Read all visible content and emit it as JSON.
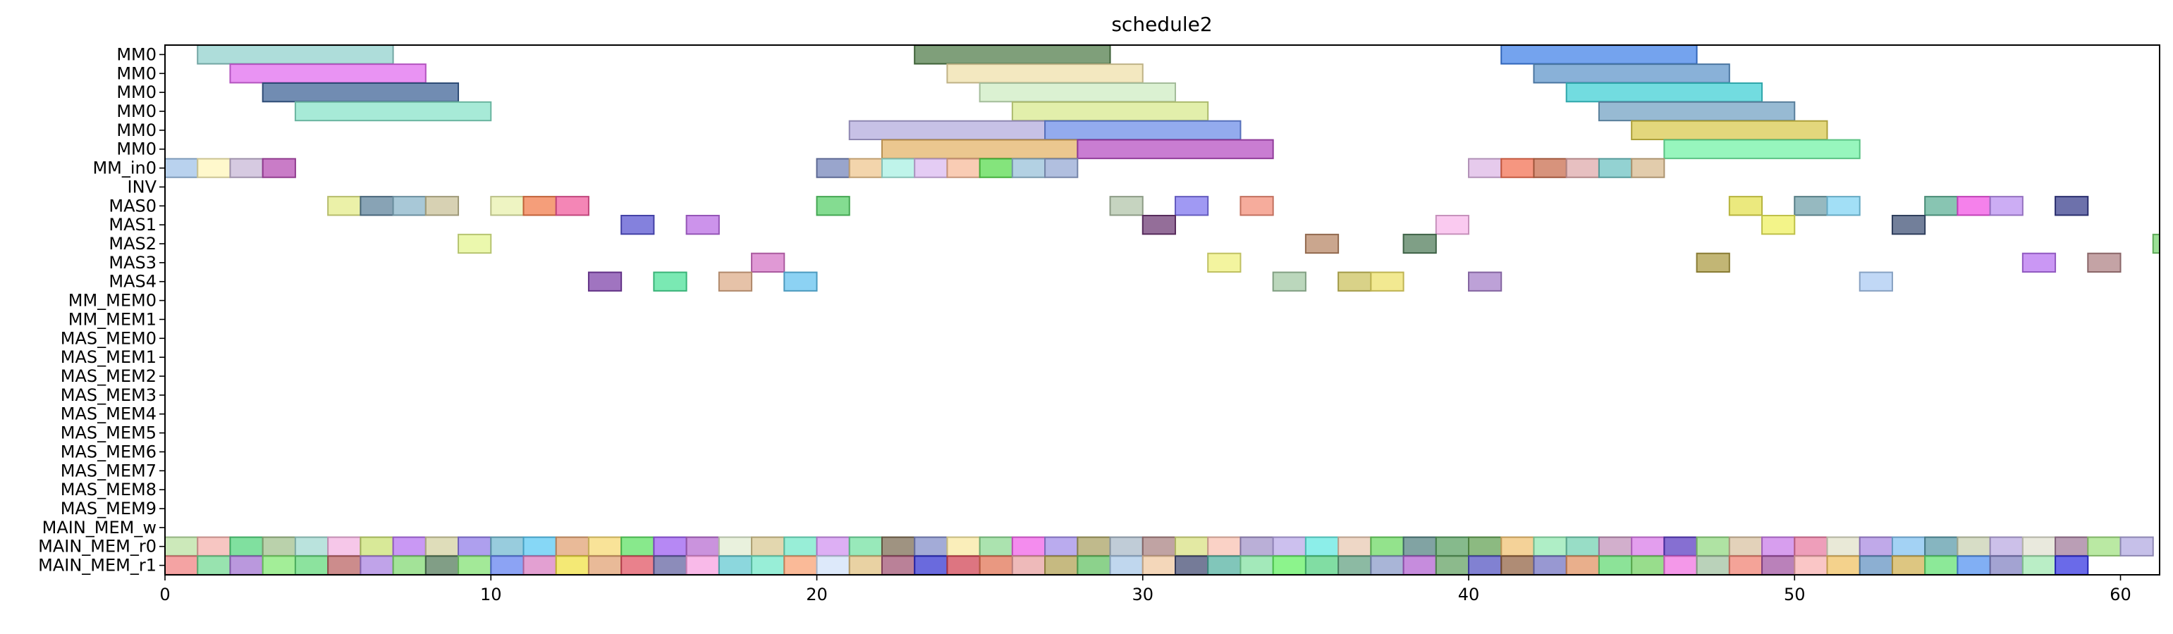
{
  "chart_data": {
    "type": "gantt",
    "title": "schedule2",
    "xlim": [
      0,
      61.2
    ],
    "xticks": [
      0,
      10,
      20,
      30,
      40,
      50,
      60
    ],
    "rows": [
      "MM0",
      "MM0",
      "MM0",
      "MM0",
      "MM0",
      "MM0",
      "MM_in0",
      "INV",
      "MAS0",
      "MAS1",
      "MAS2",
      "MAS3",
      "MAS4",
      "MM_MEM0",
      "MM_MEM1",
      "MAS_MEM0",
      "MAS_MEM1",
      "MAS_MEM2",
      "MAS_MEM3",
      "MAS_MEM4",
      "MAS_MEM5",
      "MAS_MEM6",
      "MAS_MEM7",
      "MAS_MEM8",
      "MAS_MEM9",
      "MAIN_MEM_w",
      "MAIN_MEM_r0",
      "MAIN_MEM_r1"
    ],
    "tasks": [
      {
        "row": 0,
        "start": 1,
        "end": 7,
        "color": "#8fd0cc"
      },
      {
        "row": 0,
        "start": 23,
        "end": 29,
        "color": "#4e7a46"
      },
      {
        "row": 0,
        "start": 41,
        "end": 47,
        "color": "#3f7fe8"
      },
      {
        "row": 1,
        "start": 2,
        "end": 8,
        "color": "#e069ef"
      },
      {
        "row": 1,
        "start": 24,
        "end": 30,
        "color": "#efdfa8"
      },
      {
        "row": 1,
        "start": 42,
        "end": 48,
        "color": "#5c93c9"
      },
      {
        "row": 2,
        "start": 3,
        "end": 9,
        "color": "#3a5f94"
      },
      {
        "row": 2,
        "start": 25,
        "end": 31,
        "color": "#cdebc0"
      },
      {
        "row": 2,
        "start": 43,
        "end": 49,
        "color": "#3bcfd4"
      },
      {
        "row": 3,
        "start": 4,
        "end": 10,
        "color": "#85e2c8"
      },
      {
        "row": 3,
        "start": 26,
        "end": 32,
        "color": "#d7e98a"
      },
      {
        "row": 3,
        "start": 44,
        "end": 50,
        "color": "#6f9fc2"
      },
      {
        "row": 4,
        "start": 21,
        "end": 27,
        "color": "#b1a9dd"
      },
      {
        "row": 4,
        "start": 27,
        "end": 33,
        "color": "#6a8be8"
      },
      {
        "row": 4,
        "start": 45,
        "end": 51,
        "color": "#d8c84a"
      },
      {
        "row": 5,
        "start": 22,
        "end": 28,
        "color": "#e3b164"
      },
      {
        "row": 5,
        "start": 28,
        "end": 34,
        "color": "#b44bc0"
      },
      {
        "row": 5,
        "start": 46,
        "end": 52,
        "color": "#6ff2a4"
      },
      {
        "row": 6,
        "start": 0,
        "end": 1,
        "color": "#9ec0e8"
      },
      {
        "row": 6,
        "start": 1,
        "end": 2,
        "color": "#fff5b8"
      },
      {
        "row": 6,
        "start": 2,
        "end": 3,
        "color": "#c6b5d6"
      },
      {
        "row": 6,
        "start": 3,
        "end": 4,
        "color": "#b44ab2"
      },
      {
        "row": 6,
        "start": 20,
        "end": 21,
        "color": "#7282b8"
      },
      {
        "row": 6,
        "start": 21,
        "end": 22,
        "color": "#efc58c"
      },
      {
        "row": 6,
        "start": 22,
        "end": 23,
        "color": "#a6f0e2"
      },
      {
        "row": 6,
        "start": 23,
        "end": 24,
        "color": "#d9b9f0"
      },
      {
        "row": 6,
        "start": 24,
        "end": 25,
        "color": "#f6b897"
      },
      {
        "row": 6,
        "start": 25,
        "end": 26,
        "color": "#55d94a"
      },
      {
        "row": 6,
        "start": 26,
        "end": 27,
        "color": "#96bfd8"
      },
      {
        "row": 6,
        "start": 27,
        "end": 28,
        "color": "#93a6d2"
      },
      {
        "row": 6,
        "start": 40,
        "end": 41,
        "color": "#ddb5e5"
      },
      {
        "row": 6,
        "start": 41,
        "end": 42,
        "color": "#f26e4f"
      },
      {
        "row": 6,
        "start": 42,
        "end": 43,
        "color": "#c76a4a"
      },
      {
        "row": 6,
        "start": 43,
        "end": 44,
        "color": "#dea7a9"
      },
      {
        "row": 6,
        "start": 44,
        "end": 45,
        "color": "#6ac0c0"
      },
      {
        "row": 6,
        "start": 45,
        "end": 46,
        "color": "#d7b98c"
      },
      {
        "row": 8,
        "start": 5,
        "end": 6,
        "color": "#e3eb86"
      },
      {
        "row": 8,
        "start": 6,
        "end": 7,
        "color": "#5a7f99"
      },
      {
        "row": 8,
        "start": 7,
        "end": 8,
        "color": "#86b3c7"
      },
      {
        "row": 8,
        "start": 8,
        "end": 9,
        "color": "#c7bf96"
      },
      {
        "row": 8,
        "start": 10,
        "end": 11,
        "color": "#e8f0aa"
      },
      {
        "row": 8,
        "start": 11,
        "end": 12,
        "color": "#f17946"
      },
      {
        "row": 8,
        "start": 12,
        "end": 13,
        "color": "#f0589a"
      },
      {
        "row": 8,
        "start": 20,
        "end": 21,
        "color": "#55cf66"
      },
      {
        "row": 8,
        "start": 29,
        "end": 30,
        "color": "#b0c3a8"
      },
      {
        "row": 8,
        "start": 31,
        "end": 32,
        "color": "#7c72ef"
      },
      {
        "row": 8,
        "start": 33,
        "end": 34,
        "color": "#f38c76"
      },
      {
        "row": 8,
        "start": 48,
        "end": 49,
        "color": "#e3e04c"
      },
      {
        "row": 8,
        "start": 50,
        "end": 51,
        "color": "#6d9ea8"
      },
      {
        "row": 8,
        "start": 51,
        "end": 52,
        "color": "#7ed3f2"
      },
      {
        "row": 8,
        "start": 54,
        "end": 55,
        "color": "#5aae94"
      },
      {
        "row": 8,
        "start": 55,
        "end": 56,
        "color": "#f150e3"
      },
      {
        "row": 8,
        "start": 56,
        "end": 57,
        "color": "#b98df0"
      },
      {
        "row": 8,
        "start": 58,
        "end": 59,
        "color": "#353a8a"
      },
      {
        "row": 9,
        "start": 14,
        "end": 15,
        "color": "#5451d0"
      },
      {
        "row": 9,
        "start": 16,
        "end": 17,
        "color": "#b96ae3"
      },
      {
        "row": 9,
        "start": 30,
        "end": 31,
        "color": "#6b3672"
      },
      {
        "row": 9,
        "start": 39,
        "end": 40,
        "color": "#f8b5ea"
      },
      {
        "row": 9,
        "start": 49,
        "end": 50,
        "color": "#eef05b"
      },
      {
        "row": 9,
        "start": 53,
        "end": 54,
        "color": "#3b4d73"
      },
      {
        "row": 10,
        "start": 9,
        "end": 10,
        "color": "#e3f58d"
      },
      {
        "row": 10,
        "start": 35,
        "end": 36,
        "color": "#b58362"
      },
      {
        "row": 10,
        "start": 38,
        "end": 39,
        "color": "#4e7a58"
      },
      {
        "row": 10,
        "start": 61,
        "end": 62,
        "color": "#75d46e"
      },
      {
        "row": 11,
        "start": 18,
        "end": 19,
        "color": "#d471c5"
      },
      {
        "row": 11,
        "start": 32,
        "end": 33,
        "color": "#eff07a"
      },
      {
        "row": 11,
        "start": 47,
        "end": 48,
        "color": "#aa9a40"
      },
      {
        "row": 11,
        "start": 57,
        "end": 58,
        "color": "#b56ff0"
      },
      {
        "row": 11,
        "start": 59,
        "end": 60,
        "color": "#ad7f82"
      },
      {
        "row": 12,
        "start": 13,
        "end": 14,
        "color": "#7b3fa8"
      },
      {
        "row": 12,
        "start": 15,
        "end": 16,
        "color": "#47e096"
      },
      {
        "row": 12,
        "start": 17,
        "end": 18,
        "color": "#dcab86"
      },
      {
        "row": 12,
        "start": 19,
        "end": 20,
        "color": "#5fc0ee"
      },
      {
        "row": 12,
        "start": 34,
        "end": 35,
        "color": "#a1c7a2"
      },
      {
        "row": 12,
        "start": 36,
        "end": 37,
        "color": "#cbc05a"
      },
      {
        "row": 12,
        "start": 37,
        "end": 38,
        "color": "#ede067"
      },
      {
        "row": 12,
        "start": 40,
        "end": 41,
        "color": "#a47dc8"
      },
      {
        "row": 12,
        "start": 52,
        "end": 53,
        "color": "#a9c9f2"
      }
    ],
    "r0_colors": [
      "#b9e0a0",
      "#f4b0aa",
      "#4fd47a",
      "#9fbf8a",
      "#9fd8d0",
      "#f3b2e0",
      "#c9e070",
      "#b470f0",
      "#d3d0a0",
      "#8f7ae8",
      "#70b8d0",
      "#58c7f2",
      "#e0a070",
      "#f6d870",
      "#5ae060",
      "#9a5af0",
      "#b56ad0",
      "#e0ecd0",
      "#d8c890",
      "#70e8c8",
      "#d090f0",
      "#70e0a0",
      "#7a6a50",
      "#7f8ac8",
      "#f8e8a0",
      "#8ad890",
      "#f060e8",
      "#9f8ae8",
      "#a8a060",
      "#a8b8c8",
      "#a88080",
      "#d8e080",
      "#f8c0b0",
      "#a090c8",
      "#b8a8e8",
      "#60e8e0",
      "#e8c8b0",
      "#6ad860",
      "#508080",
      "#58a060",
      "#60a050",
      "#f0c070",
      "#90e8b0",
      "#70d0b0",
      "#c090b8",
      "#d878e8",
      "#5838c0",
      "#90d880",
      "#d8c0a0",
      "#c878e8",
      "#e878a0",
      "#e0e0c8",
      "#a888e0",
      "#80c0f0",
      "#5898a8",
      "#c8d0b0",
      "#b8a8e0",
      "#e0e0d0",
      "#a07898",
      "#a0e080",
      "#b0a8e0"
    ],
    "r1_colors": [
      "#f08080",
      "#70d890",
      "#a070d0",
      "#80e870",
      "#60d878",
      "#b86060",
      "#a880e0",
      "#80d870",
      "#507858",
      "#80e070",
      "#6080f0",
      "#d87cc0",
      "#f0e040",
      "#e0a070",
      "#e05060",
      "#6060a0",
      "#f6a0e0",
      "#60c8d0",
      "#70e8c8",
      "#f8a070",
      "#d0e0f8",
      "#e0c080",
      "#a05070",
      "#3030d0",
      "#d04050",
      "#e07050",
      "#e8a0a0",
      "#b0a050",
      "#60c060",
      "#a8c8e8",
      "#f0c8a0",
      "#404870",
      "#50b0a0",
      "#80e0a0",
      "#60f060",
      "#50d080",
      "#60a080",
      "#8898c8",
      "#b060d0",
      "#60a060",
      "#5050c0",
      "#906040",
      "#7070c0",
      "#e09060",
      "#60d870",
      "#70d060",
      "#f070e0",
      "#a0c0a0",
      "#f08070",
      "#a050a0",
      "#f8b0b0",
      "#f0c060",
      "#6090c0",
      "#d0b050",
      "#60e070",
      "#5090f0",
      "#8080c0",
      "#a0e8b0",
      "#3030e0"
    ]
  }
}
